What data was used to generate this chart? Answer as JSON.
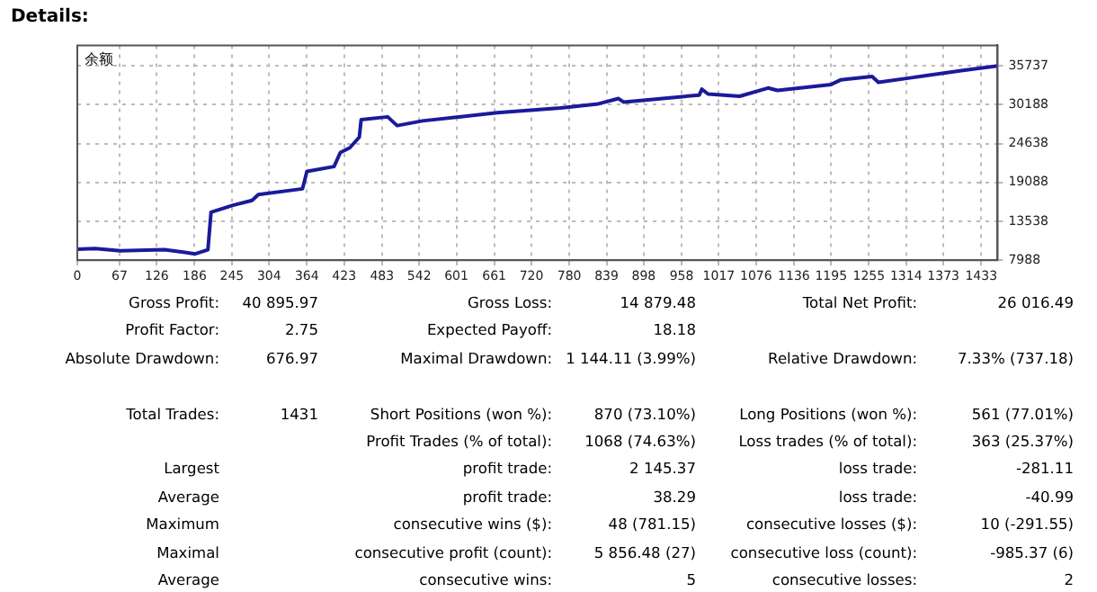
{
  "chart_data": {
    "type": "line",
    "title": "Details:",
    "x": [
      0,
      28,
      68,
      138,
      168,
      187,
      207,
      212,
      247,
      277,
      287,
      357,
      364,
      407,
      417,
      432,
      447,
      450,
      492,
      507,
      547,
      666,
      766,
      826,
      858,
      866,
      986,
      990,
      1000,
      1050,
      1095,
      1110,
      1195,
      1210,
      1260,
      1270,
      1325,
      1404,
      1459
    ],
    "series": [
      {
        "name": "余额",
        "color": "#1a1a9c",
        "values": [
          9569,
          9650,
          9318,
          9480,
          9140,
          8890,
          9480,
          14840,
          15840,
          16520,
          17350,
          18180,
          20680,
          21360,
          23370,
          24040,
          25550,
          28060,
          28460,
          27210,
          27880,
          29060,
          29720,
          30320,
          31070,
          30570,
          31570,
          32400,
          31720,
          31400,
          32580,
          32230,
          33080,
          33730,
          34230,
          33400,
          34080,
          35090,
          35740
        ]
      }
    ],
    "xlim": [
      0,
      1459
    ],
    "xticks": [
      0,
      67,
      126,
      186,
      245,
      304,
      364,
      423,
      483,
      542,
      601,
      661,
      720,
      780,
      839,
      898,
      958,
      1017,
      1076,
      1136,
      1195,
      1255,
      1314,
      1373,
      1433
    ],
    "ylim": [
      7988,
      38670
    ],
    "yticks": [
      7988,
      13538,
      19088,
      24638,
      30188,
      35737
    ],
    "grid": true,
    "legend": "top left",
    "marker": "none",
    "line_style": "solid",
    "annotations": [
      "Gross Profit:",
      "40 895.97",
      "Gross Loss:",
      "14 879.48",
      "Total Net Profit:",
      "26 016.49",
      "Profit Factor:",
      "2.75",
      "Expected Payoff:",
      "18.18",
      "Absolute Drawdown:",
      "676.97",
      "Maximal Drawdown:",
      "1 144.11 (3.99%)",
      "Relative Drawdown:",
      "7.33% (737.18)",
      "Total Trades:",
      "1431",
      "Short Positions (won %):",
      "870 (73.10%)",
      "Long Positions (won %):",
      "561 (77.01%)",
      "Profit Trades (% of total):",
      "1068 (74.63%)",
      "Loss trades (% of total):",
      "363 (25.37%)",
      "Largest",
      "profit trade:",
      "2 145.37",
      "loss trade:",
      "-281.11",
      "Average",
      "profit trade:",
      "38.29",
      "loss trade:",
      "-40.99",
      "Maximum",
      "consecutive wins ($):",
      "48 (781.15)",
      "consecutive losses ($):",
      "10 (-291.55)",
      "Maximal",
      "consecutive profit (count):",
      "5 856.48 (27)",
      "consecutive loss (count):",
      "-985.37 (6)",
      "Average",
      "consecutive wins:",
      "5",
      "consecutive losses:",
      "2"
    ]
  }
}
